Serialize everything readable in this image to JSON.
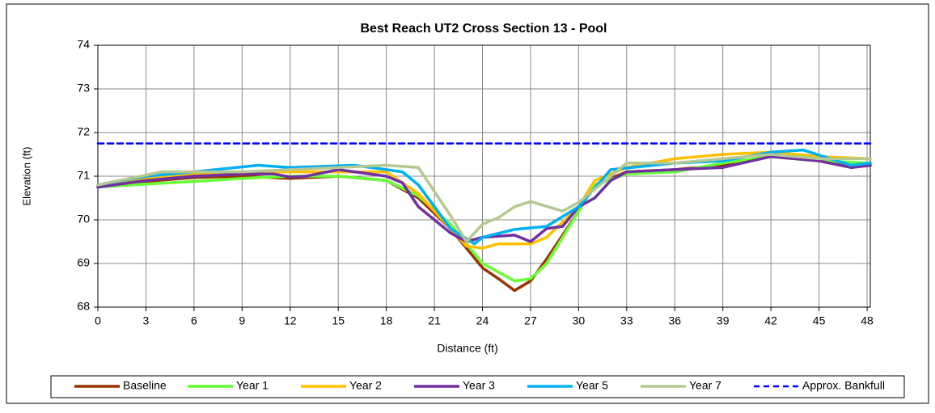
{
  "chart_data": {
    "type": "line",
    "title": "Best Reach UT2 Cross Section 13 - Pool",
    "xlabel": "Distance (ft)",
    "ylabel": "Elevation (ft)",
    "xlim": [
      0,
      48.2
    ],
    "xticks": [
      0,
      3,
      6,
      9,
      12,
      15,
      18,
      21,
      24,
      27,
      30,
      33,
      36,
      39,
      42,
      45,
      48
    ],
    "ylim": [
      68,
      74
    ],
    "yticks": [
      68,
      69,
      70,
      71,
      72,
      73,
      74
    ],
    "grid": true,
    "legend": "bottom",
    "series": [
      {
        "name": "Baseline",
        "color": "#993300",
        "x": [
          0,
          3,
          6,
          9,
          12,
          15,
          18,
          20,
          22,
          24,
          25,
          26,
          27,
          28,
          30,
          31,
          33,
          36,
          39,
          42,
          44,
          47,
          48.2
        ],
        "values": [
          70.75,
          70.88,
          70.97,
          71.0,
          70.95,
          71.0,
          70.9,
          70.5,
          69.8,
          68.9,
          68.65,
          68.38,
          68.6,
          69.1,
          70.2,
          70.8,
          71.1,
          71.15,
          71.25,
          71.45,
          71.45,
          71.2,
          71.25
        ]
      },
      {
        "name": "Year 1",
        "color": "#66ff33",
        "x": [
          0,
          3,
          6,
          9,
          12,
          15,
          18,
          20,
          22,
          24,
          26,
          27,
          28,
          30,
          31,
          33,
          36,
          39,
          42,
          45,
          48.2
        ],
        "values": [
          70.75,
          70.82,
          70.88,
          70.95,
          71.0,
          71.0,
          70.9,
          70.55,
          69.9,
          69.0,
          68.6,
          68.65,
          69.0,
          70.2,
          70.8,
          71.05,
          71.1,
          71.3,
          71.45,
          71.35,
          71.3
        ]
      },
      {
        "name": "Year 2",
        "color": "#ffc000",
        "x": [
          0,
          3,
          6,
          9,
          12,
          15,
          18,
          20,
          22,
          23,
          24,
          25,
          27,
          28,
          30,
          31,
          33,
          36,
          39,
          42,
          45,
          48.2
        ],
        "values": [
          70.8,
          70.95,
          71.05,
          71.1,
          71.1,
          71.1,
          71.1,
          70.6,
          69.8,
          69.4,
          69.35,
          69.45,
          69.45,
          69.6,
          70.3,
          70.9,
          71.2,
          71.4,
          71.5,
          71.55,
          71.45,
          71.4
        ]
      },
      {
        "name": "Year 3",
        "color": "#7030a0",
        "x": [
          0,
          3,
          6,
          9,
          11,
          12,
          13,
          15,
          18,
          19,
          20,
          22,
          23,
          24,
          26,
          27,
          28,
          29,
          30,
          31,
          32,
          33,
          36,
          39,
          42,
          45,
          47,
          48.2
        ],
        "values": [
          70.75,
          70.9,
          71.0,
          71.05,
          71.05,
          70.98,
          71.0,
          71.15,
          71.0,
          70.85,
          70.3,
          69.7,
          69.5,
          69.6,
          69.65,
          69.5,
          69.8,
          69.85,
          70.3,
          70.5,
          70.9,
          71.1,
          71.15,
          71.2,
          71.45,
          71.35,
          71.2,
          71.25
        ]
      },
      {
        "name": "Year 5",
        "color": "#00b0f0",
        "x": [
          0,
          3,
          6,
          10,
          12,
          16,
          19,
          20,
          22,
          23.5,
          24,
          26,
          28,
          30,
          32,
          36,
          39,
          42,
          44,
          47,
          48.2
        ],
        "values": [
          70.8,
          71.0,
          71.1,
          71.25,
          71.2,
          71.25,
          71.1,
          70.8,
          69.8,
          69.45,
          69.6,
          69.78,
          69.85,
          70.3,
          71.15,
          71.3,
          71.35,
          71.55,
          71.6,
          71.25,
          71.3
        ]
      },
      {
        "name": "Year 7",
        "color": "#b4c891",
        "x": [
          0,
          4,
          9,
          12,
          15,
          18,
          20,
          22,
          23,
          24,
          25,
          26,
          27,
          29,
          30,
          31,
          33,
          36,
          39,
          42,
          45,
          48.2
        ],
        "values": [
          70.8,
          71.1,
          71.1,
          71.15,
          71.2,
          71.25,
          71.2,
          70.1,
          69.5,
          69.9,
          70.05,
          70.3,
          70.42,
          70.2,
          70.4,
          70.7,
          71.3,
          71.3,
          71.4,
          71.5,
          71.4,
          71.4
        ]
      },
      {
        "name": "Approx. Bankfull",
        "color": "#0000ff",
        "dashed": true,
        "x": [
          0,
          48.2
        ],
        "values": [
          71.75,
          71.75
        ]
      }
    ]
  }
}
